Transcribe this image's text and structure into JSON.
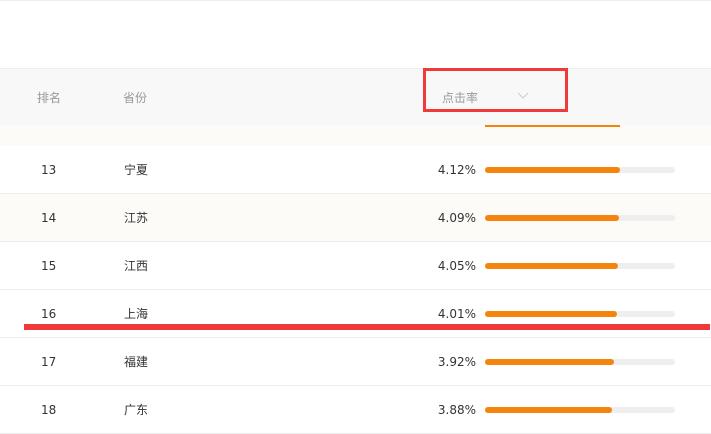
{
  "table": {
    "headers": [
      "排名",
      "省份",
      "点击率"
    ],
    "rows": [
      {
        "rank": "13",
        "province": "宁夏",
        "rate": {
          "value": 4.12,
          "label": "4.12%"
        }
      },
      {
        "rank": "14",
        "province": "江苏",
        "rate": {
          "value": 4.09,
          "label": "4.09%"
        }
      },
      {
        "rank": "15",
        "province": "江西",
        "rate": {
          "value": 4.05,
          "label": "4.05%"
        }
      },
      {
        "rank": "16",
        "province": "上海",
        "rate": {
          "value": 4.01,
          "label": "4.01%"
        }
      },
      {
        "rank": "17",
        "province": "福建",
        "rate": {
          "value": 3.92,
          "label": "3.92%"
        }
      },
      {
        "rank": "18",
        "province": "广东",
        "rate": {
          "value": 3.88,
          "label": "3.88%"
        }
      }
    ]
  }
}
